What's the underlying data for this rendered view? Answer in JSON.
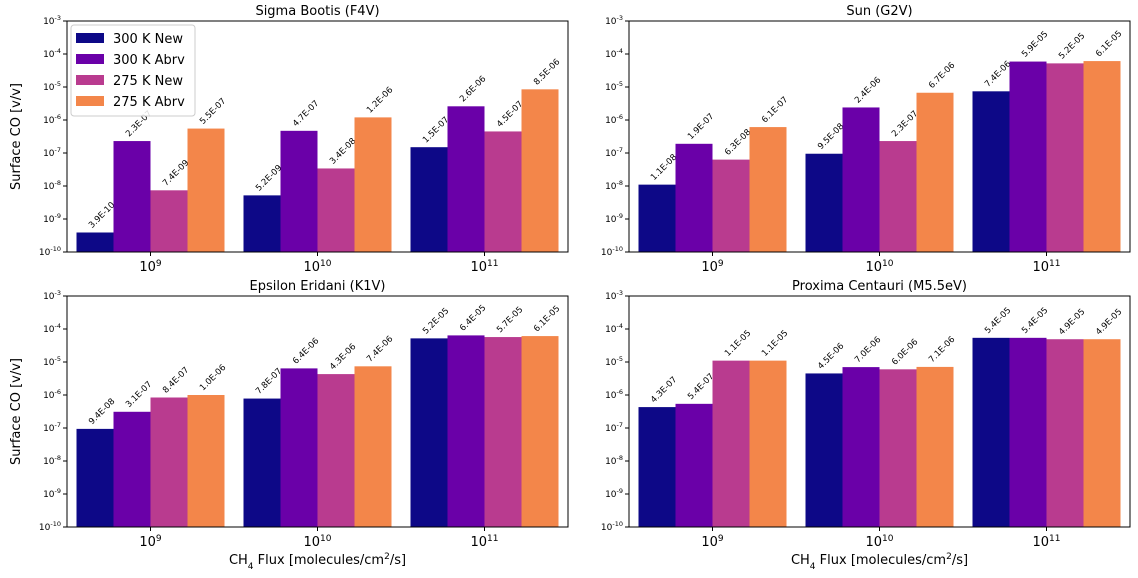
{
  "chart_data": [
    {
      "type": "bar",
      "title": "Sigma Bootis (F4V)",
      "ylabel": "Surface CO [v/v]",
      "xlabel": "",
      "yscale": "log",
      "ylim": [
        1e-10,
        0.001
      ],
      "categories": [
        "10^9",
        "10^10",
        "10^11"
      ],
      "series": [
        {
          "name": "300 K New",
          "values": [
            3.9e-10,
            5.2e-09,
            1.5e-07
          ],
          "labels": [
            "3.9E-10",
            "5.2E-09",
            "1.5E-07"
          ]
        },
        {
          "name": "300 K Abrv",
          "values": [
            2.3e-07,
            4.7e-07,
            2.6e-06
          ],
          "labels": [
            "2.3E-07",
            "4.7E-07",
            "2.6E-06"
          ]
        },
        {
          "name": "275 K New",
          "values": [
            7.4e-09,
            3.4e-08,
            4.5e-07
          ],
          "labels": [
            "7.4E-09",
            "3.4E-08",
            "4.5E-07"
          ]
        },
        {
          "name": "275 K Abrv",
          "values": [
            5.5e-07,
            1.2e-06,
            8.5e-06
          ],
          "labels": [
            "5.5E-07",
            "1.2E-06",
            "8.5E-06"
          ]
        }
      ],
      "legend": "top-left"
    },
    {
      "type": "bar",
      "title": "Sun (G2V)",
      "ylabel": "",
      "xlabel": "",
      "yscale": "log",
      "ylim": [
        1e-10,
        0.001
      ],
      "categories": [
        "10^9",
        "10^10",
        "10^11"
      ],
      "series": [
        {
          "name": "300 K New",
          "values": [
            1.1e-08,
            9.5e-08,
            7.4e-06
          ],
          "labels": [
            "1.1E-08",
            "9.5E-08",
            "7.4E-06"
          ]
        },
        {
          "name": "300 K Abrv",
          "values": [
            1.9e-07,
            2.4e-06,
            5.9e-05
          ],
          "labels": [
            "1.9E-07",
            "2.4E-06",
            "5.9E-05"
          ]
        },
        {
          "name": "275 K New",
          "values": [
            6.3e-08,
            2.3e-07,
            5.2e-05
          ],
          "labels": [
            "6.3E-08",
            "2.3E-07",
            "5.2E-05"
          ]
        },
        {
          "name": "275 K Abrv",
          "values": [
            6.1e-07,
            6.7e-06,
            6.1e-05
          ],
          "labels": [
            "6.1E-07",
            "6.7E-06",
            "6.1E-05"
          ]
        }
      ]
    },
    {
      "type": "bar",
      "title": "Epsilon Eridani (K1V)",
      "ylabel": "Surface CO [v/v]",
      "xlabel": "CH4 Flux [molecules/cm2/s]",
      "yscale": "log",
      "ylim": [
        1e-10,
        0.001
      ],
      "categories": [
        "10^9",
        "10^10",
        "10^11"
      ],
      "series": [
        {
          "name": "300 K New",
          "values": [
            9.4e-08,
            7.8e-07,
            5.2e-05
          ],
          "labels": [
            "9.4E-08",
            "7.8E-07",
            "5.2E-05"
          ]
        },
        {
          "name": "300 K Abrv",
          "values": [
            3.1e-07,
            6.4e-06,
            6.4e-05
          ],
          "labels": [
            "3.1E-07",
            "6.4E-06",
            "6.4E-05"
          ]
        },
        {
          "name": "275 K New",
          "values": [
            8.4e-07,
            4.3e-06,
            5.7e-05
          ],
          "labels": [
            "8.4E-07",
            "4.3E-06",
            "5.7E-05"
          ]
        },
        {
          "name": "275 K Abrv",
          "values": [
            1e-06,
            7.4e-06,
            6.1e-05
          ],
          "labels": [
            "1.0E-06",
            "7.4E-06",
            "6.1E-05"
          ]
        }
      ]
    },
    {
      "type": "bar",
      "title": "Proxima Centauri (M5.5eV)",
      "ylabel": "",
      "xlabel": "CH4 Flux [molecules/cm2/s]",
      "yscale": "log",
      "ylim": [
        1e-10,
        0.001
      ],
      "categories": [
        "10^9",
        "10^10",
        "10^11"
      ],
      "series": [
        {
          "name": "300 K New",
          "values": [
            4.3e-07,
            4.5e-06,
            5.4e-05
          ],
          "labels": [
            "4.3E-07",
            "4.5E-06",
            "5.4E-05"
          ]
        },
        {
          "name": "300 K Abrv",
          "values": [
            5.4e-07,
            7e-06,
            5.4e-05
          ],
          "labels": [
            "5.4E-07",
            "7.0E-06",
            "5.4E-05"
          ]
        },
        {
          "name": "275 K New",
          "values": [
            1.1e-05,
            6e-06,
            4.9e-05
          ],
          "labels": [
            "1.1E-05",
            "6.0E-06",
            "4.9E-05"
          ]
        },
        {
          "name": "275 K Abrv",
          "values": [
            1.1e-05,
            7.1e-06,
            4.9e-05
          ],
          "labels": [
            "1.1E-05",
            "7.1E-06",
            "4.9E-05"
          ]
        }
      ]
    }
  ],
  "colors": {
    "300 K New": "#0d0887",
    "300 K Abrv": "#6a00a8",
    "275 K New": "#b93b8f",
    "275 K Abrv": "#f3864a"
  },
  "y_ticks": [
    "10^-10",
    "10^-9",
    "10^-8",
    "10^-7",
    "10^-6",
    "10^-5",
    "10^-4",
    "10^-3"
  ]
}
